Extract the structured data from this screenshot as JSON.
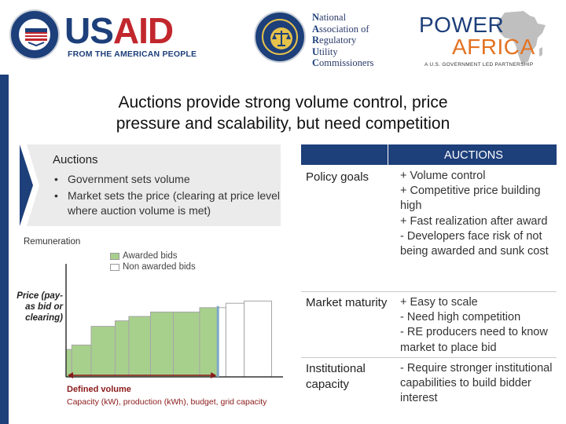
{
  "header": {
    "usaid": {
      "wordmark_us": "US",
      "wordmark_aid": "AID",
      "tagline": "FROM THE AMERICAN PEOPLE",
      "seal_icon": "usaid-seal-icon",
      "colors": {
        "red": "#c1272d",
        "blue": "#1d3f7a"
      }
    },
    "naruc": {
      "seal_icon": "naruc-seal-icon",
      "lines": [
        {
          "cap": "N",
          "rest": "ational"
        },
        {
          "cap": "A",
          "rest": "ssociation of"
        },
        {
          "cap": "R",
          "rest": "egulatory"
        },
        {
          "cap": "U",
          "rest": "tility"
        },
        {
          "cap": "C",
          "rest": "ommissioners"
        }
      ]
    },
    "power_africa": {
      "power": "POWER",
      "africa": "AFRICA",
      "tagline": "A U.S. GOVERNMENT LED PARTNERSHIP",
      "map_icon": "africa-map-icon",
      "colors": {
        "power": "#1d3f7a",
        "africa": "#e37222"
      }
    }
  },
  "title": {
    "line1": "Auctions provide strong volume control, price",
    "line2": "pressure and scalability, but need competition"
  },
  "auctions_box": {
    "heading": "Auctions",
    "bullets": [
      "Government sets volume",
      "Market sets the price (clearing at price level where auction volume is met)"
    ]
  },
  "chart_data": {
    "type": "bar",
    "y_axis_label": "Remuneration",
    "price_label": "Price (pay-as bid or clearing)",
    "legend": [
      {
        "name": "Awarded bids",
        "color": "#a8d08d"
      },
      {
        "name": "Non awarded bids",
        "color": "#ffffff"
      }
    ],
    "defined_volume_label": "Defined volume",
    "defined_volume_sub": "Capacity (kW), production (kWh), budget, grid capacity",
    "bids": [
      {
        "volume": 5,
        "price": 25,
        "awarded": true
      },
      {
        "volume": 17,
        "price": 29,
        "awarded": true
      },
      {
        "volume": 21,
        "price": 46,
        "awarded": true
      },
      {
        "volume": 12,
        "price": 51,
        "awarded": true
      },
      {
        "volume": 19,
        "price": 55,
        "awarded": true
      },
      {
        "volume": 20,
        "price": 59,
        "awarded": true
      },
      {
        "volume": 23,
        "price": 59,
        "awarded": true
      },
      {
        "volume": 16,
        "price": 63,
        "awarded": true
      },
      {
        "volume": 7,
        "price": 63,
        "awarded": false
      },
      {
        "volume": 16,
        "price": 67,
        "awarded": false
      },
      {
        "volume": 24,
        "price": 69,
        "awarded": false
      }
    ],
    "defined_volume_value": 133,
    "clearing_price": 63,
    "xlim": [
      0,
      190
    ],
    "ylim": [
      0,
      100
    ],
    "colors": {
      "awarded": "#a8d08d",
      "cutoff": "#7fa8c9",
      "arrow": "#8b1a1a"
    }
  },
  "table": {
    "header": "AUCTIONS",
    "rows": [
      {
        "label": "Policy goals",
        "items": [
          "+ Volume control",
          "+ Competitive price building high",
          "+ Fast realization after award",
          "- Developers face risk of not being awarded and sunk cost"
        ]
      },
      {
        "label": "Market maturity",
        "items": [
          "+ Easy to scale",
          "- Need high competition",
          "- RE producers need to know market to place bid"
        ]
      },
      {
        "label": "Institutional capacity",
        "items": [
          "- Require stronger institutional capabilities to build bidder interest"
        ]
      }
    ]
  }
}
